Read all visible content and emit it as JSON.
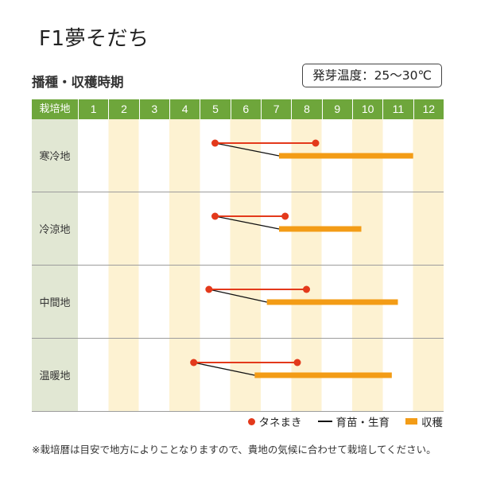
{
  "title": "F1夢そだち",
  "germination_temperature": "発芽温度：25～30℃",
  "footnote": "※栽培暦は目安で地方によりことなりますので、貴地の気候に合わせて栽培してください。",
  "colors": {
    "header": "#6ea63b",
    "label_column": "#e1e7d3",
    "month_stripe": "#fdf2d2",
    "row_divider": "#9c9c9c"
  },
  "chart_data": {
    "type": "bar",
    "orientation": "horizontal",
    "title": "播種・収穫時期",
    "category_header": "栽培地",
    "categories": [
      "寒冷地",
      "冷涼地",
      "中間地",
      "温暖地"
    ],
    "x": [
      "1",
      "2",
      "3",
      "4",
      "5",
      "6",
      "7",
      "8",
      "9",
      "10",
      "11",
      "12"
    ],
    "xlim": [
      1,
      13
    ],
    "grid": false,
    "legend": "bottom-right",
    "series": [
      {
        "name": "タネまき",
        "marker": "dots-with-line",
        "color": "#e3391b",
        "values": [
          [
            5.5,
            8.8
          ],
          [
            5.5,
            7.8
          ],
          [
            5.3,
            8.5
          ],
          [
            4.8,
            8.2
          ]
        ]
      },
      {
        "name": "育苗・生育",
        "marker": "line",
        "color": "#111111",
        "values": [
          [
            5.5,
            7.6
          ],
          [
            5.5,
            7.6
          ],
          [
            5.3,
            7.2
          ],
          [
            4.8,
            6.8
          ]
        ]
      },
      {
        "name": "収穫",
        "marker": "bar",
        "color": "#f39c16",
        "values": [
          [
            7.6,
            12.0
          ],
          [
            7.6,
            10.3
          ],
          [
            7.2,
            11.5
          ],
          [
            6.8,
            11.3
          ]
        ]
      }
    ]
  }
}
